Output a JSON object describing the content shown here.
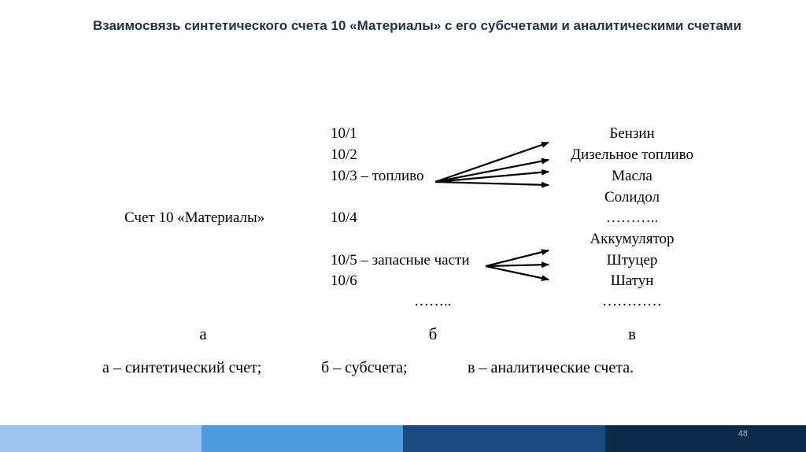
{
  "title": "Взаимосвязь синтетического счета 10 «Материалы» с его субсчетами и аналитическими счетами",
  "synthetic_account": "Счет 10 «Материалы»",
  "subaccounts": [
    "10/1",
    "10/2",
    "10/3 – топливо",
    "10/4",
    "10/5 – запасные части",
    "10/6",
    "…….."
  ],
  "analytical_accounts": [
    "Бензин",
    "Дизельное топливо",
    "Масла",
    "Солидол",
    "………..",
    "Аккумулятор",
    "Штуцер",
    "Шатун",
    "…………"
  ],
  "column_labels": [
    "а",
    "б",
    "в"
  ],
  "legend": [
    "а – синтетический счет;",
    "б – субсчета;",
    "в – аналитические счета."
  ],
  "page_number": "48",
  "colors": {
    "title": "#1f3050",
    "footer": [
      "#9ec5ee",
      "#4c9be0",
      "#1a4a80",
      "#0e2a4a"
    ]
  }
}
